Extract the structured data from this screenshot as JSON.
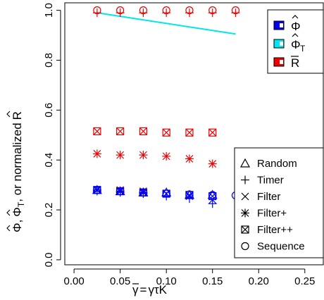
{
  "chart_data": {
    "type": "scatter",
    "title": "",
    "xlabel_parts": [
      "γ",
      "=",
      "γτK"
    ],
    "ylabel_parts": [
      "Φ",
      ",",
      "Φ",
      "T",
      ", or normalized",
      "R"
    ],
    "xlim": [
      -0.01,
      0.27
    ],
    "ylim": [
      -0.02,
      1.03
    ],
    "xticks": [
      "0.00",
      "0.05",
      "0.10",
      "0.15",
      "0.20",
      "0.25"
    ],
    "xtick_values": [
      0.0,
      0.05,
      0.1,
      0.15,
      0.2,
      0.25
    ],
    "yticks": [
      "0.0",
      "0.2",
      "0.4",
      "0.6",
      "0.8",
      "1.0"
    ],
    "ytick_values": [
      0.0,
      0.2,
      0.4,
      0.6,
      0.8,
      1.0
    ],
    "grid": false,
    "colors": {
      "phi": "#0000ee",
      "phiT": "#00e5ee",
      "R": "#ee0000"
    },
    "legend_metrics": {
      "placement": "top-right",
      "entries": [
        {
          "key": "phi",
          "label": "Φ"
        },
        {
          "key": "phiT",
          "label": "Φ",
          "sub": "T"
        },
        {
          "key": "R",
          "label": "R"
        }
      ]
    },
    "legend_filters": {
      "placement": "bottom-right",
      "entries": [
        {
          "shape": "triangle",
          "label": "Random"
        },
        {
          "shape": "plus",
          "label": "Timer"
        },
        {
          "shape": "cross",
          "label": "Filter"
        },
        {
          "shape": "asterisk",
          "label": "Filter+"
        },
        {
          "shape": "boxcross",
          "label": "Filter++"
        },
        {
          "shape": "circle",
          "label": "Sequence"
        }
      ]
    },
    "series": [
      {
        "metric": "R",
        "shape": "circle",
        "x": [
          0.025,
          0.05,
          0.075,
          0.1,
          0.125,
          0.15,
          0.175
        ],
        "y": [
          1.0,
          1.0,
          1.0,
          1.0,
          1.0,
          1.0,
          1.0
        ]
      },
      {
        "metric": "R",
        "shape": "plus",
        "x": [
          0.025,
          0.05,
          0.075,
          0.1,
          0.125,
          0.15,
          0.175
        ],
        "y": [
          0.99,
          0.99,
          0.99,
          0.99,
          0.99,
          0.99,
          0.99
        ]
      },
      {
        "metric": "R",
        "shape": "boxcross",
        "x": [
          0.025,
          0.05,
          0.075,
          0.1,
          0.125,
          0.15
        ],
        "y": [
          0.515,
          0.515,
          0.515,
          0.51,
          0.51,
          0.51
        ]
      },
      {
        "metric": "R",
        "shape": "asterisk",
        "x": [
          0.025,
          0.05,
          0.075,
          0.1,
          0.125,
          0.15
        ],
        "y": [
          0.425,
          0.42,
          0.42,
          0.415,
          0.405,
          0.385
        ]
      },
      {
        "metric": "R",
        "shape": "cross",
        "x": [
          0.025,
          0.05,
          0.075
        ],
        "y": [
          0.28,
          0.28,
          0.275
        ]
      },
      {
        "metric": "phi",
        "shape": "asterisk",
        "x": [
          0.025,
          0.05,
          0.075
        ],
        "y": [
          0.28,
          0.275,
          0.27
        ]
      },
      {
        "metric": "phi",
        "shape": "boxcross",
        "x": [
          0.025,
          0.05,
          0.075,
          0.1,
          0.125,
          0.15
        ],
        "y": [
          0.28,
          0.275,
          0.27,
          0.265,
          0.26,
          0.255
        ]
      },
      {
        "metric": "phi",
        "shape": "circle",
        "x": [
          0.025,
          0.05,
          0.075,
          0.1,
          0.125,
          0.15,
          0.175
        ],
        "y": [
          0.28,
          0.275,
          0.27,
          0.265,
          0.262,
          0.26,
          0.258
        ]
      },
      {
        "metric": "phi",
        "shape": "plus",
        "x": [
          0.025,
          0.05,
          0.075,
          0.1,
          0.125,
          0.15
        ],
        "y": [
          0.275,
          0.27,
          0.265,
          0.255,
          0.245,
          0.225
        ]
      },
      {
        "metric": "phi",
        "shape": "cross",
        "x": [
          0.025,
          0.05,
          0.075,
          0.1,
          0.125,
          0.15
        ],
        "y": [
          0.28,
          0.275,
          0.27,
          0.265,
          0.255,
          0.24
        ]
      },
      {
        "metric": "phi",
        "shape": "triangle",
        "x": [
          0.025,
          0.05,
          0.075,
          0.1,
          0.125,
          0.15
        ],
        "y": [
          0.28,
          0.275,
          0.27,
          0.27,
          0.26,
          0.26
        ]
      }
    ],
    "lines": [
      {
        "metric": "phiT",
        "x": [
          0.025,
          0.175
        ],
        "y": [
          0.99,
          0.905
        ]
      }
    ]
  }
}
